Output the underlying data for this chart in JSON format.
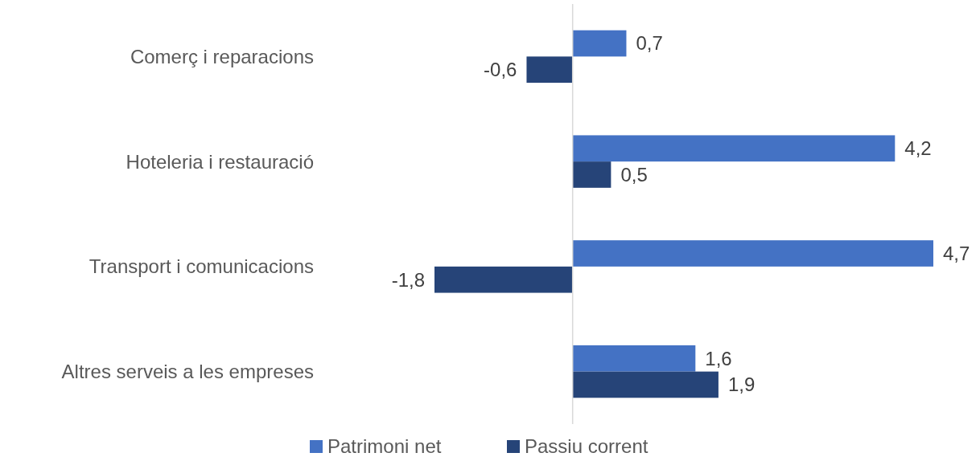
{
  "chart_data": {
    "type": "bar",
    "orientation": "horizontal",
    "categories": [
      "Comerç i reparacions",
      "Hoteleria i restauració",
      "Transport i comunicacions",
      "Altres serveis a les empreses"
    ],
    "series": [
      {
        "name": "Patrimoni net",
        "color": "#4472c4",
        "values": [
          0.7,
          4.2,
          4.7,
          1.6
        ],
        "value_labels": [
          "0,7",
          "4,2",
          "4,7",
          "1,6"
        ]
      },
      {
        "name": "Passiu corrent",
        "color": "#264478",
        "values": [
          -0.6,
          0.5,
          -1.8,
          1.9
        ],
        "value_labels": [
          "-0,6",
          "0,5",
          "-1,8",
          "1,9"
        ]
      }
    ],
    "legend": "bottom"
  }
}
